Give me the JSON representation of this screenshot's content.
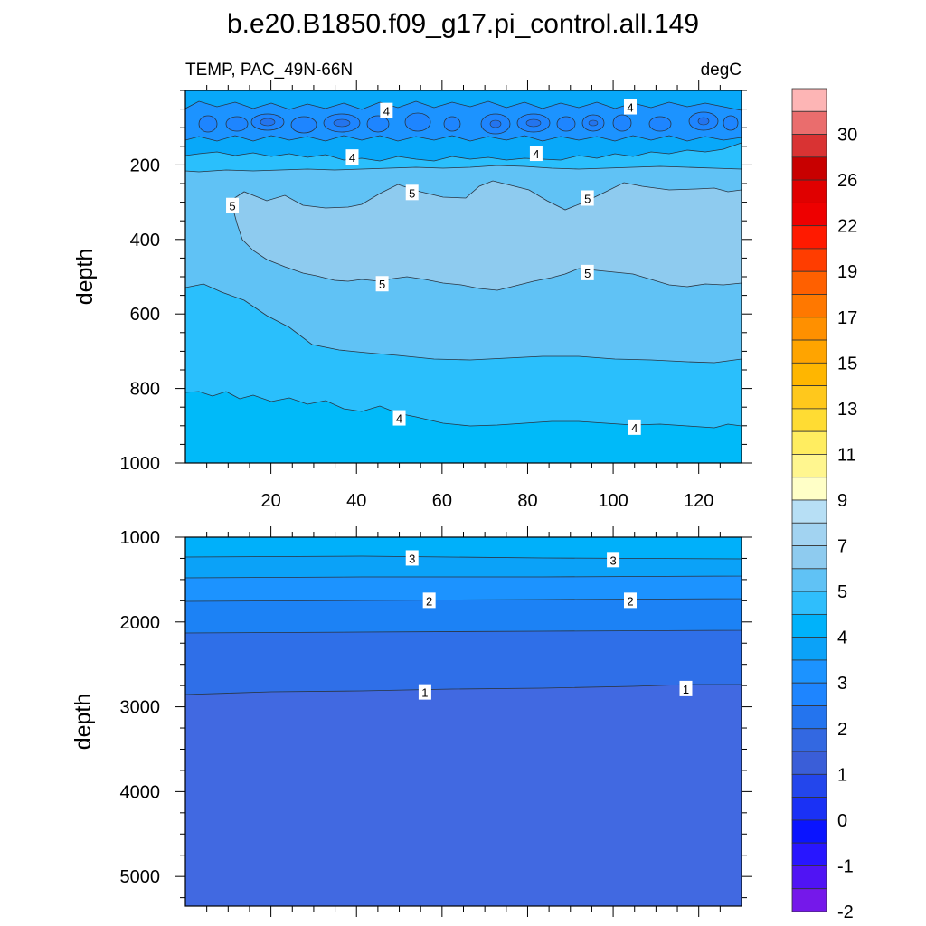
{
  "chart_data": {
    "type": "heatmap",
    "title": "b.e20.B1850.f09_g17.pi_control.all.149",
    "variable": "TEMP, PAC_49N-66N",
    "units": "degC",
    "colorbar": {
      "labels": [
        "30",
        "26",
        "22",
        "19",
        "17",
        "15",
        "13",
        "11",
        "9",
        "7",
        "5",
        "4",
        "3",
        "2",
        "1",
        "0",
        "-1",
        "-2"
      ],
      "colors": [
        "#fdb5b5",
        "#ea6d6d",
        "#d93333",
        "#c80000",
        "#e00000",
        "#ee0000",
        "#ff1a00",
        "#ff3d00",
        "#ff6000",
        "#ff7800",
        "#ff9000",
        "#ffa400",
        "#ffb600",
        "#ffc81c",
        "#ffdc33",
        "#ffed60",
        "#fff68f",
        "#ffffc7",
        "#b7dff5",
        "#a2d3f1",
        "#8ecbef",
        "#60c2f5",
        "#2fbefc",
        "#00b2fa",
        "#0ba2f8",
        "#1c93ff",
        "#1e85ff",
        "#2474ee",
        "#3368e1",
        "#3a5ed8",
        "#2346ec",
        "#1a31f5",
        "#0a14ff",
        "#2816ff",
        "#5014f4",
        "#7518ea"
      ]
    },
    "panels": [
      {
        "name": "upper",
        "xlim": [
          0,
          130
        ],
        "ylim": [
          1000,
          0
        ],
        "ylabel": "depth",
        "xticks": [
          "20",
          "40",
          "60",
          "80",
          "100",
          "120"
        ],
        "yticks": [
          "200",
          "400",
          "600",
          "800",
          "1000"
        ],
        "contour_labels": [
          {
            "text": "4",
            "x": 47,
            "d": 55
          },
          {
            "text": "4",
            "x": 104,
            "d": 45
          },
          {
            "text": "4",
            "x": 39,
            "d": 180
          },
          {
            "text": "4",
            "x": 82,
            "d": 170
          },
          {
            "text": "5",
            "x": 11,
            "d": 310
          },
          {
            "text": "5",
            "x": 53,
            "d": 275
          },
          {
            "text": "5",
            "x": 94,
            "d": 290
          },
          {
            "text": "5",
            "x": 46,
            "d": 520
          },
          {
            "text": "5",
            "x": 94,
            "d": 490
          },
          {
            "text": "4",
            "x": 50,
            "d": 880
          },
          {
            "text": "4",
            "x": 105,
            "d": 905
          }
        ]
      },
      {
        "name": "lower",
        "xlim": [
          0,
          130
        ],
        "ylim": [
          5350,
          1000
        ],
        "ylabel": "depth",
        "xticks": [],
        "yticks": [
          "1000",
          "2000",
          "3000",
          "4000",
          "5000"
        ],
        "contour_labels": [
          {
            "text": "3",
            "x": 53,
            "d": 1250
          },
          {
            "text": "3",
            "x": 100,
            "d": 1270
          },
          {
            "text": "2",
            "x": 57,
            "d": 1750
          },
          {
            "text": "2",
            "x": 104,
            "d": 1750
          },
          {
            "text": "1",
            "x": 56,
            "d": 2830
          },
          {
            "text": "1",
            "x": 117,
            "d": 2790
          }
        ]
      }
    ]
  }
}
